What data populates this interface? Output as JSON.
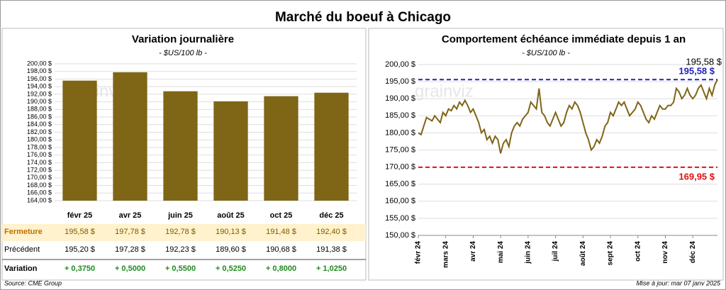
{
  "title": "Marché du boeuf à Chicago",
  "chart_data": [
    {
      "type": "bar",
      "title": "Variation journalière",
      "subtitle": "- $US/100 lb -",
      "categories": [
        "févr 25",
        "avr 25",
        "juin 25",
        "août 25",
        "oct 25",
        "déc 25"
      ],
      "values": [
        195.58,
        197.78,
        192.78,
        190.13,
        191.48,
        192.4
      ],
      "value_labels": [
        "195,58 $",
        "197,78 $",
        "192,78 $",
        "190,13 $",
        "191,48 $",
        "192,40 $"
      ],
      "color": "#7f6516",
      "ylim": [
        164,
        200
      ],
      "yticks": [
        {
          "value": 164,
          "label": "164,00 $"
        },
        {
          "value": 166,
          "label": "166,00 $"
        },
        {
          "value": 168,
          "label": "168,00 $"
        },
        {
          "value": 170,
          "label": "170,00 $"
        },
        {
          "value": 172,
          "label": "172,00 $"
        },
        {
          "value": 174,
          "label": "174,00 $"
        },
        {
          "value": 176,
          "label": "176,00 $"
        },
        {
          "value": 178,
          "label": "178,00 $"
        },
        {
          "value": 180,
          "label": "180,00 $"
        },
        {
          "value": 182,
          "label": "182,00 $"
        },
        {
          "value": 184,
          "label": "184,00 $"
        },
        {
          "value": 186,
          "label": "186,00 $"
        },
        {
          "value": 188,
          "label": "188,00 $"
        },
        {
          "value": 190,
          "label": "190,00 $"
        },
        {
          "value": 192,
          "label": "192,00 $"
        },
        {
          "value": 194,
          "label": "194,00 $"
        },
        {
          "value": 196,
          "label": "196,00 $"
        },
        {
          "value": 198,
          "label": "198,00 $"
        },
        {
          "value": 200,
          "label": "200,00 $"
        }
      ],
      "grid": true
    },
    {
      "type": "line",
      "title": "Comportement échéance immédiate depuis 1 an",
      "subtitle": "- $US/100 lb -",
      "color": "#7f6516",
      "values": [
        180,
        179.5,
        182,
        184.5,
        184,
        183.5,
        185,
        184,
        183,
        186,
        185,
        187,
        186.5,
        188,
        187,
        189,
        188,
        189.5,
        188,
        186,
        187,
        185,
        183,
        180,
        181,
        178,
        179,
        177,
        179,
        178,
        174,
        177,
        178,
        176,
        180,
        182,
        183,
        182,
        184,
        185,
        186,
        189,
        188,
        187,
        193,
        186,
        185,
        183,
        182,
        184,
        186,
        184,
        182,
        183,
        186,
        188,
        187,
        189,
        188,
        186,
        183,
        180,
        178,
        175,
        176,
        178,
        177,
        179,
        182,
        183,
        186,
        185,
        187,
        189,
        188,
        189,
        187,
        185,
        186,
        187,
        189,
        188,
        186,
        184,
        183,
        185,
        184,
        186,
        188,
        187,
        187,
        188,
        188,
        189,
        193,
        192,
        190,
        191,
        193,
        191,
        190,
        191,
        193,
        194,
        192,
        190,
        193,
        191,
        194,
        195.58
      ],
      "last_value_label": "195,58 $",
      "xlim": [
        0,
        109
      ],
      "xticks": [
        {
          "value": 0,
          "label": "févr 24"
        },
        {
          "value": 10,
          "label": "mars 24"
        },
        {
          "value": 20,
          "label": "avr 24"
        },
        {
          "value": 30,
          "label": "mai 24"
        },
        {
          "value": 40,
          "label": "juin 24"
        },
        {
          "value": 50,
          "label": "juil 24"
        },
        {
          "value": 60,
          "label": "août 24"
        },
        {
          "value": 70,
          "label": "sept 24"
        },
        {
          "value": 80,
          "label": "oct 24"
        },
        {
          "value": 90,
          "label": "nov 24"
        },
        {
          "value": 100,
          "label": "déc 24"
        }
      ],
      "ylim": [
        150,
        200
      ],
      "yticks": [
        {
          "value": 150,
          "label": "150,00 $"
        },
        {
          "value": 155,
          "label": "155,00 $"
        },
        {
          "value": 160,
          "label": "160,00 $"
        },
        {
          "value": 165,
          "label": "165,00 $"
        },
        {
          "value": 170,
          "label": "170,00 $"
        },
        {
          "value": 175,
          "label": "175,00 $"
        },
        {
          "value": 180,
          "label": "180,00 $"
        },
        {
          "value": 185,
          "label": "185,00 $"
        },
        {
          "value": 190,
          "label": "190,00 $"
        },
        {
          "value": 195,
          "label": "195,00 $"
        },
        {
          "value": 200,
          "label": "200,00 $"
        }
      ],
      "reference_lines": [
        {
          "value": 195.58,
          "label": "195,58 $",
          "color": "#2222bb"
        },
        {
          "value": 169.95,
          "label": "169,95 $",
          "color": "#e01010"
        }
      ],
      "grid": true
    }
  ],
  "table": {
    "row_labels": [
      "Fermeture",
      "Précédent",
      "Variation"
    ],
    "previous": [
      "195,20 $",
      "197,28 $",
      "192,23 $",
      "189,60 $",
      "190,68 $",
      "191,38 $"
    ],
    "variation": [
      "+ 0,3750",
      "+ 0,5000",
      "+ 0,5500",
      "+ 0,5250",
      "+ 0,8000",
      "+ 1,0250"
    ]
  },
  "watermark": "grainviz",
  "source": "Source: CME Group",
  "updated": "Mise à jour: mar 07 janv 2025"
}
